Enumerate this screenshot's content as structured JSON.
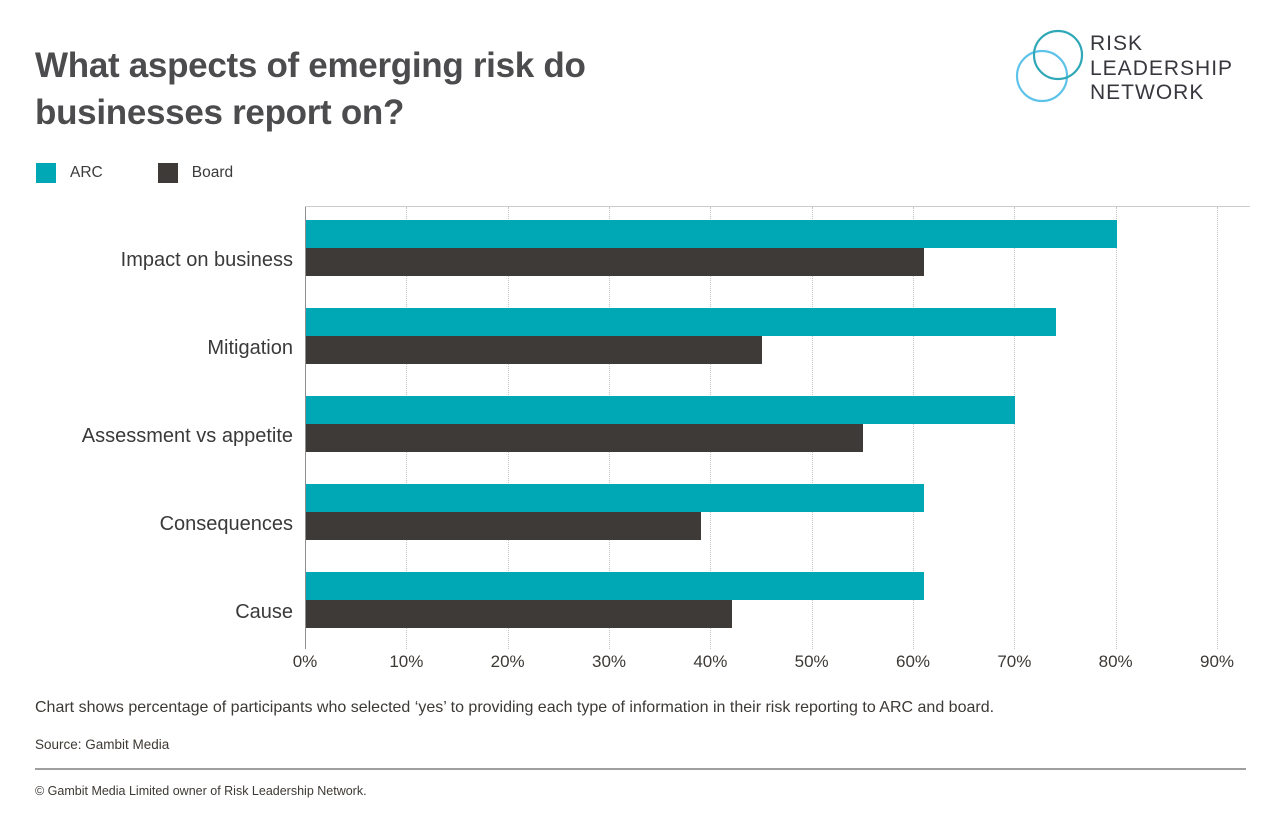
{
  "header": {
    "title_lines": [
      "What aspects of emerging risk do",
      "businesses report on?"
    ],
    "logo": {
      "lines": [
        "RISK",
        "LEADERSHIP",
        "NETWORK"
      ],
      "circle_teal": "#2ea7b6",
      "circle_lightblue": "#5ec3e8",
      "text_color": "#37373e"
    }
  },
  "legend": [
    {
      "label": "ARC",
      "color": "#00a7b4"
    },
    {
      "label": "Board",
      "color": "#3e3a37"
    }
  ],
  "chart_data": {
    "type": "bar",
    "orientation": "horizontal",
    "title": "What aspects of emerging risk do businesses report on?",
    "categories": [
      "Impact on business",
      "Mitigation",
      "Assessment vs appetite",
      "Consequences",
      "Cause"
    ],
    "series": [
      {
        "name": "ARC",
        "color": "#00a7b4",
        "values": [
          80,
          74,
          70,
          61,
          61
        ]
      },
      {
        "name": "Board",
        "color": "#3e3a37",
        "values": [
          61,
          45,
          55,
          39,
          42
        ]
      }
    ],
    "x_ticks": [
      "0%",
      "10%",
      "20%",
      "30%",
      "40%",
      "50%",
      "60%",
      "70%",
      "80%",
      "90%"
    ],
    "xlim": [
      0,
      90
    ],
    "xlabel": "",
    "ylabel": "",
    "grid": "vertical-dotted",
    "legend_position": "top-left"
  },
  "footer": {
    "note": "Chart shows percentage of participants who selected ‘yes’ to providing each type of information in their risk reporting to ARC and board.",
    "source": "Source: Gambit Media",
    "copyright": "© Gambit Media Limited owner of Risk Leadership Network."
  }
}
